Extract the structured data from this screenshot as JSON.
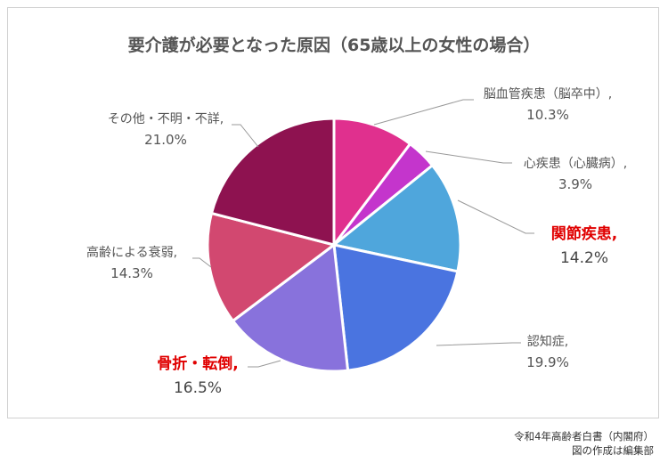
{
  "chart_data": {
    "type": "pie",
    "title": "要介護が必要となった原因（65歳以上の女性の場合）",
    "unit": "%",
    "slices": [
      {
        "label": "脳血管疾患（脳卒中）,",
        "value": 10.3,
        "value_label": "10.3%",
        "color": "#e0308e",
        "highlight": false
      },
      {
        "label": "心疾患（心臓病）,",
        "value": 3.9,
        "value_label": "3.9%",
        "color": "#c435cc",
        "highlight": false
      },
      {
        "label": "関節疾患,",
        "value": 14.2,
        "value_label": "14.2%",
        "color": "#4fa6dc",
        "highlight": true
      },
      {
        "label": "認知症,",
        "value": 19.9,
        "value_label": "19.9%",
        "color": "#4a74e0",
        "highlight": false
      },
      {
        "label": "骨折・転倒,",
        "value": 16.5,
        "value_label": "16.5%",
        "color": "#8872dc",
        "highlight": true
      },
      {
        "label": "高齢による衰弱,",
        "value": 14.3,
        "value_label": "14.3%",
        "color": "#d24870",
        "highlight": false
      },
      {
        "label": "その他・不明・不詳,",
        "value": 21.0,
        "value_label": "21.0%",
        "color": "#8e1250",
        "highlight": false
      }
    ]
  },
  "source": {
    "line1": "令和4年高齢者白書（内閣府）",
    "line2": "図の作成は編集部"
  }
}
